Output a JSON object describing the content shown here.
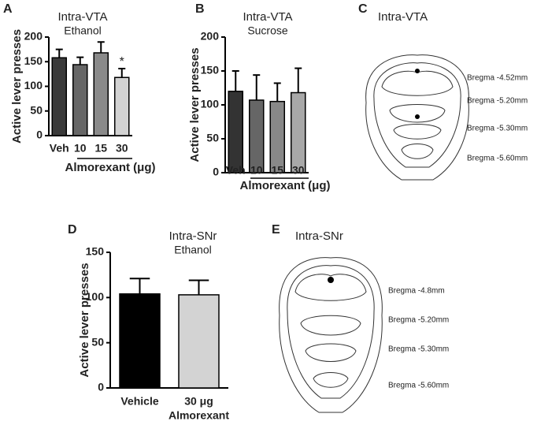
{
  "chart_data": [
    {
      "type": "bar",
      "panel": "A",
      "title": "Intra-VTA",
      "subtitle": "Ethanol",
      "categories": [
        "Veh",
        "10",
        "15",
        "30"
      ],
      "x_label": "Almorexant (μg)",
      "y_label": "Active lever presses",
      "values": [
        158,
        144,
        168,
        118
      ],
      "errors": [
        17,
        15,
        22,
        18
      ],
      "significance": [
        null,
        null,
        null,
        "*"
      ],
      "colors": [
        "#3a3a3a",
        "#666666",
        "#8a8a8a",
        "#d2d2d2"
      ],
      "ylim": [
        0,
        200
      ],
      "yticks": [
        0,
        50,
        100,
        150,
        200
      ]
    },
    {
      "type": "bar",
      "panel": "B",
      "title": "Intra-VTA",
      "subtitle": "Sucrose",
      "categories": [
        "Veh",
        "10",
        "15",
        "30"
      ],
      "x_label": "Almorexant (μg)",
      "y_label": "Active lever presses",
      "values": [
        120,
        107,
        105,
        118
      ],
      "errors": [
        30,
        37,
        27,
        36
      ],
      "colors": [
        "#333333",
        "#666666",
        "#888888",
        "#a8a8a8"
      ],
      "ylim": [
        0,
        200
      ],
      "yticks": [
        0,
        50,
        100,
        150,
        200
      ]
    },
    {
      "type": "bar",
      "panel": "D",
      "title": "Intra-SNr",
      "subtitle": "Ethanol",
      "categories": [
        "Vehicle",
        "30 μg"
      ],
      "category_sublabels": [
        null,
        "Almorexant"
      ],
      "y_label": "Active lever presses",
      "values": [
        104,
        103
      ],
      "errors": [
        17,
        16
      ],
      "colors": [
        "#000000",
        "#d3d3d3"
      ],
      "ylim": [
        0,
        150
      ],
      "yticks": [
        0,
        50,
        100,
        150
      ]
    }
  ],
  "diagrams": [
    {
      "panel": "C",
      "title": "Intra-VTA",
      "labels": [
        "Bregma -4.52mm",
        "Bregma -5.20mm",
        "Bregma -5.30mm",
        "Bregma -5.60mm"
      ]
    },
    {
      "panel": "E",
      "title": "Intra-SNr",
      "labels": [
        "Bregma -4.8mm",
        "Bregma -5.20mm",
        "Bregma -5.30mm",
        "Bregma -5.60mm"
      ]
    }
  ]
}
